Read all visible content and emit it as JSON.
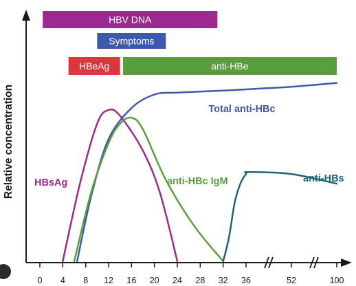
{
  "chart_data": {
    "type": "line",
    "ylabel": "Relative concentration",
    "x_ticks": [
      "0",
      "4",
      "8",
      "12",
      "16",
      "20",
      "24",
      "28",
      "32",
      "36",
      "52",
      "100"
    ],
    "x_breaks": [
      "36-52",
      "52-100"
    ],
    "ylim": [
      0,
      100
    ],
    "bars": [
      {
        "name": "HBV DNA",
        "start": 0.5,
        "end": 31,
        "color": "#9c2a8e"
      },
      {
        "name": "Symptoms",
        "start": 10,
        "end": 22,
        "color": "#3d5aa8"
      },
      {
        "name": "HBeAg",
        "start": 5,
        "end": 14,
        "color": "#d9363e"
      },
      {
        "name": "anti-HBe",
        "start": 14.5,
        "end": 100,
        "color": "#5a9e3c"
      }
    ],
    "series": [
      {
        "name": "Total anti-HBc",
        "color": "#3d5aa8",
        "points": [
          [
            6.5,
            0
          ],
          [
            9,
            34
          ],
          [
            12,
            63
          ],
          [
            16,
            79
          ],
          [
            20,
            86
          ],
          [
            24,
            87
          ],
          [
            32,
            88
          ],
          [
            40,
            89
          ],
          [
            52,
            90
          ],
          [
            100,
            92
          ]
        ]
      },
      {
        "name": "HBsAg",
        "color": "#9c2a8e",
        "points": [
          [
            4,
            0
          ],
          [
            7,
            40
          ],
          [
            10,
            71
          ],
          [
            12,
            78
          ],
          [
            14,
            75
          ],
          [
            18,
            57
          ],
          [
            21,
            35
          ],
          [
            24,
            0
          ]
        ]
      },
      {
        "name": "anti-HBc IgM",
        "color": "#5a9e3c",
        "points": [
          [
            6,
            0
          ],
          [
            9,
            36
          ],
          [
            12,
            61
          ],
          [
            14,
            71
          ],
          [
            16,
            74
          ],
          [
            18,
            68
          ],
          [
            22,
            42
          ],
          [
            27,
            18
          ],
          [
            32,
            0
          ]
        ]
      },
      {
        "name": "anti-HBs",
        "color": "#1e6674",
        "points": [
          [
            32,
            0
          ],
          [
            33,
            12
          ],
          [
            34,
            30
          ],
          [
            35,
            40
          ],
          [
            36,
            45
          ],
          [
            37,
            46
          ],
          [
            52,
            45
          ],
          [
            100,
            40
          ]
        ]
      }
    ]
  }
}
